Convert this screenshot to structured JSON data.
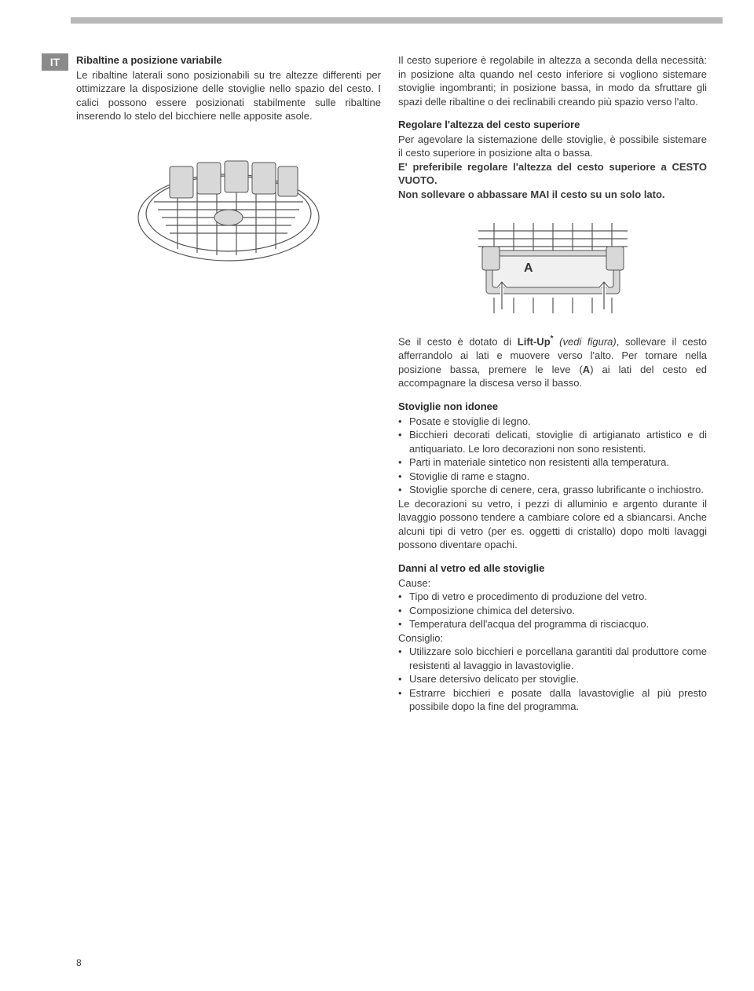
{
  "lang": "IT",
  "page_number": "8",
  "colors": {
    "topbar": "#b8b8b8",
    "langtag_bg": "#8a8a8a",
    "langtag_fg": "#ffffff",
    "text": "#3a3a3a"
  },
  "left": {
    "h1": "Ribaltine a posizione variabile",
    "p1": "Le ribaltine laterali sono posizionabili su tre altezze differenti per ottimizzare la disposizione delle stoviglie nello spazio del cesto. I calici possono essere posizionati stabilmente sulle ribaltine inserendo lo stelo del bicchiere nelle apposite asole."
  },
  "right": {
    "p1": "Il cesto superiore è regolabile in altezza a seconda della necessità: in posizione alta quando nel cesto inferiore si vogliono sistemare stoviglie ingombranti; in posizione bassa, in modo da sfruttare gli spazi delle ribaltine o dei reclinabili creando più spazio verso l'alto.",
    "h2": "Regolare l'altezza del cesto superiore",
    "p2": "Per agevolare la sistemazione delle stoviglie, è possibile sistemare il cesto superiore in posizione alta o bassa.",
    "p3": "E' preferibile regolare l'altezza del cesto superiore a CESTO VUOTO.",
    "p4": "Non sollevare o abbassare MAI il cesto su un solo lato.",
    "lift_pre": "Se il cesto è dotato di ",
    "lift_bold": "Lift-Up",
    "lift_star": "*",
    "lift_italic": " (vedi figura)",
    "lift_post": ", sollevare il cesto afferrandolo ai lati e muovere verso l'alto. Per tornare nella posizione bassa, premere le leve (",
    "lift_A": "A",
    "lift_post2": ") ai lati del cesto ed accompagnare la discesa verso il basso.",
    "h3": "Stoviglie non idonee",
    "list1": [
      "Posate e stoviglie di legno.",
      "Bicchieri decorati delicati, stoviglie di artigianato artistico e di antiquariato. Le loro decorazioni non sono resistenti.",
      "Parti in materiale sintetico non resistenti alla temperatura.",
      "Stoviglie di rame e stagno.",
      "Stoviglie sporche di cenere, cera, grasso lubrificante o inchiostro."
    ],
    "p5": "Le decorazioni su vetro, i pezzi di alluminio e argento durante il lavaggio possono tendere a cambiare colore ed a sbiancarsi. Anche alcuni tipi di vetro (per es. oggetti di cristallo) dopo molti lavaggi possono diventare opachi.",
    "h4": "Danni al vetro ed alle stoviglie",
    "cause_label": "Cause:",
    "list2": [
      "Tipo di vetro e procedimento di produzione del vetro.",
      "Composizione chimica del detersivo.",
      "Temperatura dell'acqua del programma di risciacquo."
    ],
    "consiglio_label": "Consiglio:",
    "list3": [
      "Utilizzare solo bicchieri e porcellana garantiti dal produttore come resistenti al lavaggio in lavastoviglie.",
      "Usare detersivo delicato per stoviglie.",
      "Estrarre bicchieri e posate dalla lavastoviglie al più presto possibile dopo la fine del programma."
    ]
  }
}
